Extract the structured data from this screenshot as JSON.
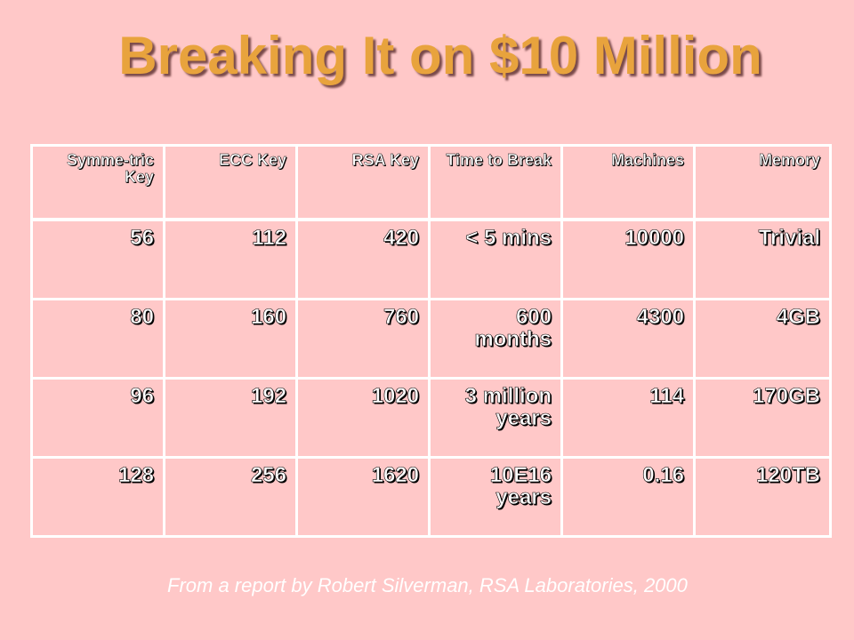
{
  "title": "Breaking It on $10 Million",
  "table": {
    "headers": [
      "Symme-tric Key",
      "ECC Key",
      "RSA Key",
      "Time to Break",
      "Machines",
      "Memory"
    ],
    "rows": [
      [
        "56",
        "112",
        "420",
        "< 5 mins",
        "10000",
        "Trivial"
      ],
      [
        "80",
        "160",
        "760",
        "600 months",
        "4300",
        "4GB"
      ],
      [
        "96",
        "192",
        "1020",
        "3 million years",
        "114",
        "170GB"
      ],
      [
        "128",
        "256",
        "1620",
        "10E16 years",
        "0.16",
        "120TB"
      ]
    ]
  },
  "source_note": "From a report by Robert Silverman, RSA Laboratories, 2000",
  "colors": {
    "background": "#ffc8c8",
    "title": "#e8a33d",
    "grid": "#ffffff",
    "text": "#ffffff"
  }
}
